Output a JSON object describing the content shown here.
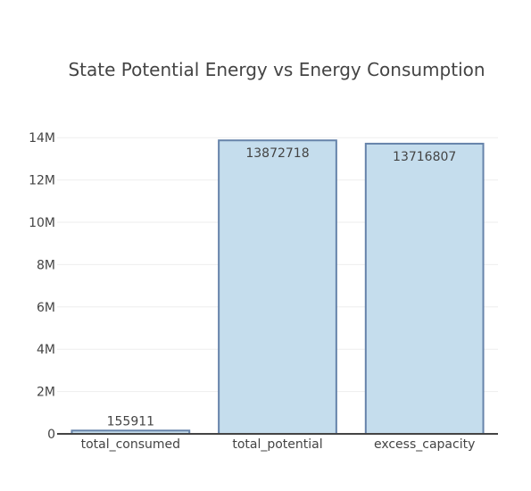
{
  "chart_data": {
    "type": "bar",
    "title": "State Potential Energy vs Energy Consumption",
    "xlabel": "",
    "ylabel": "",
    "categories": [
      "total_consumed",
      "total_potential",
      "excess_capacity"
    ],
    "values": [
      155911,
      13872718,
      13716807
    ],
    "data_labels": [
      "155911",
      "13872718",
      "13716807"
    ],
    "ylim": [
      0,
      14600000
    ],
    "yticks": [
      0,
      2000000,
      4000000,
      6000000,
      8000000,
      10000000,
      12000000,
      14000000
    ],
    "ytick_labels": [
      "0",
      "2M",
      "4M",
      "6M",
      "8M",
      "10M",
      "12M",
      "14M"
    ],
    "grid": true,
    "legend": "none",
    "colors": {
      "bar_fill": "#c5dded",
      "bar_stroke": "#6683aa",
      "grid": "#eeeeee",
      "axis": "#444444",
      "text": "#444444"
    }
  }
}
